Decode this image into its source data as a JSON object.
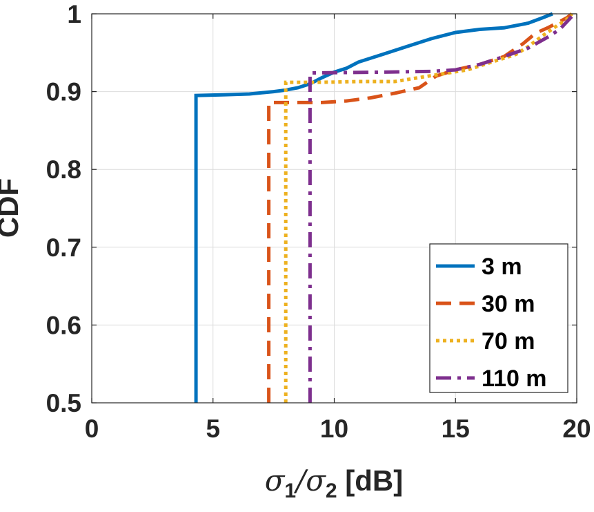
{
  "chart_data": {
    "type": "line",
    "title": "",
    "xlabel": "σ1/σ2 [dB]",
    "xlabel_parts": {
      "sym1": "σ",
      "sub1": "1",
      "slash": "/",
      "sym2": "σ",
      "sub2": "2",
      "unit": " [dB]"
    },
    "ylabel": "CDF",
    "xlim": [
      0,
      20
    ],
    "ylim": [
      0.5,
      1
    ],
    "xticks": [
      0,
      5,
      10,
      15,
      20
    ],
    "xtick_labels": [
      "0",
      "5",
      "10",
      "15",
      "20"
    ],
    "yticks": [
      0.5,
      0.6,
      0.7,
      0.8,
      0.9,
      1
    ],
    "ytick_labels": [
      "0.5",
      "0.6",
      "0.7",
      "0.8",
      "0.9",
      "1"
    ],
    "grid": true,
    "legend_position": "bottom-right",
    "series": [
      {
        "name": "3 m",
        "color": "#0072BD",
        "style": "solid",
        "points": [
          [
            4.3,
            0.5
          ],
          [
            4.3,
            0.895
          ],
          [
            5.5,
            0.896
          ],
          [
            6.5,
            0.897
          ],
          [
            7.5,
            0.9
          ],
          [
            8.0,
            0.902
          ],
          [
            8.5,
            0.905
          ],
          [
            9.0,
            0.91
          ],
          [
            9.5,
            0.918
          ],
          [
            10.0,
            0.925
          ],
          [
            10.5,
            0.93
          ],
          [
            11.0,
            0.938
          ],
          [
            12.0,
            0.948
          ],
          [
            13.0,
            0.958
          ],
          [
            14.0,
            0.968
          ],
          [
            15.0,
            0.976
          ],
          [
            16.0,
            0.98
          ],
          [
            17.0,
            0.982
          ],
          [
            18.0,
            0.988
          ],
          [
            18.6,
            0.995
          ],
          [
            19.0,
            1.0
          ]
        ]
      },
      {
        "name": "30 m",
        "color": "#D95319",
        "style": "dashed",
        "points": [
          [
            7.3,
            0.5
          ],
          [
            7.3,
            0.886
          ],
          [
            9.5,
            0.886
          ],
          [
            10.5,
            0.888
          ],
          [
            11.5,
            0.892
          ],
          [
            12.5,
            0.898
          ],
          [
            13.5,
            0.905
          ],
          [
            14.2,
            0.92
          ],
          [
            15.0,
            0.928
          ],
          [
            16.0,
            0.935
          ],
          [
            17.0,
            0.945
          ],
          [
            17.8,
            0.962
          ],
          [
            18.3,
            0.975
          ],
          [
            18.8,
            0.982
          ],
          [
            19.3,
            0.99
          ],
          [
            19.6,
            0.995
          ],
          [
            19.8,
            1.0
          ]
        ]
      },
      {
        "name": "70 m",
        "color": "#EDB120",
        "style": "dotted",
        "points": [
          [
            8.0,
            0.5
          ],
          [
            8.0,
            0.912
          ],
          [
            9.5,
            0.912
          ],
          [
            11.0,
            0.913
          ],
          [
            12.5,
            0.913
          ],
          [
            13.5,
            0.918
          ],
          [
            14.5,
            0.923
          ],
          [
            15.5,
            0.928
          ],
          [
            16.5,
            0.938
          ],
          [
            17.5,
            0.948
          ],
          [
            18.0,
            0.958
          ],
          [
            18.6,
            0.972
          ],
          [
            19.2,
            0.985
          ],
          [
            19.6,
            0.993
          ],
          [
            19.8,
            1.0
          ]
        ]
      },
      {
        "name": "110 m",
        "color": "#7E2F8E",
        "style": "dashdot",
        "points": [
          [
            9.0,
            0.5
          ],
          [
            9.0,
            0.924
          ],
          [
            12.0,
            0.925
          ],
          [
            14.0,
            0.926
          ],
          [
            15.0,
            0.928
          ],
          [
            16.0,
            0.935
          ],
          [
            17.0,
            0.945
          ],
          [
            18.0,
            0.956
          ],
          [
            18.8,
            0.97
          ],
          [
            19.3,
            0.98
          ],
          [
            19.6,
            0.99
          ],
          [
            19.9,
            1.0
          ]
        ]
      }
    ]
  }
}
